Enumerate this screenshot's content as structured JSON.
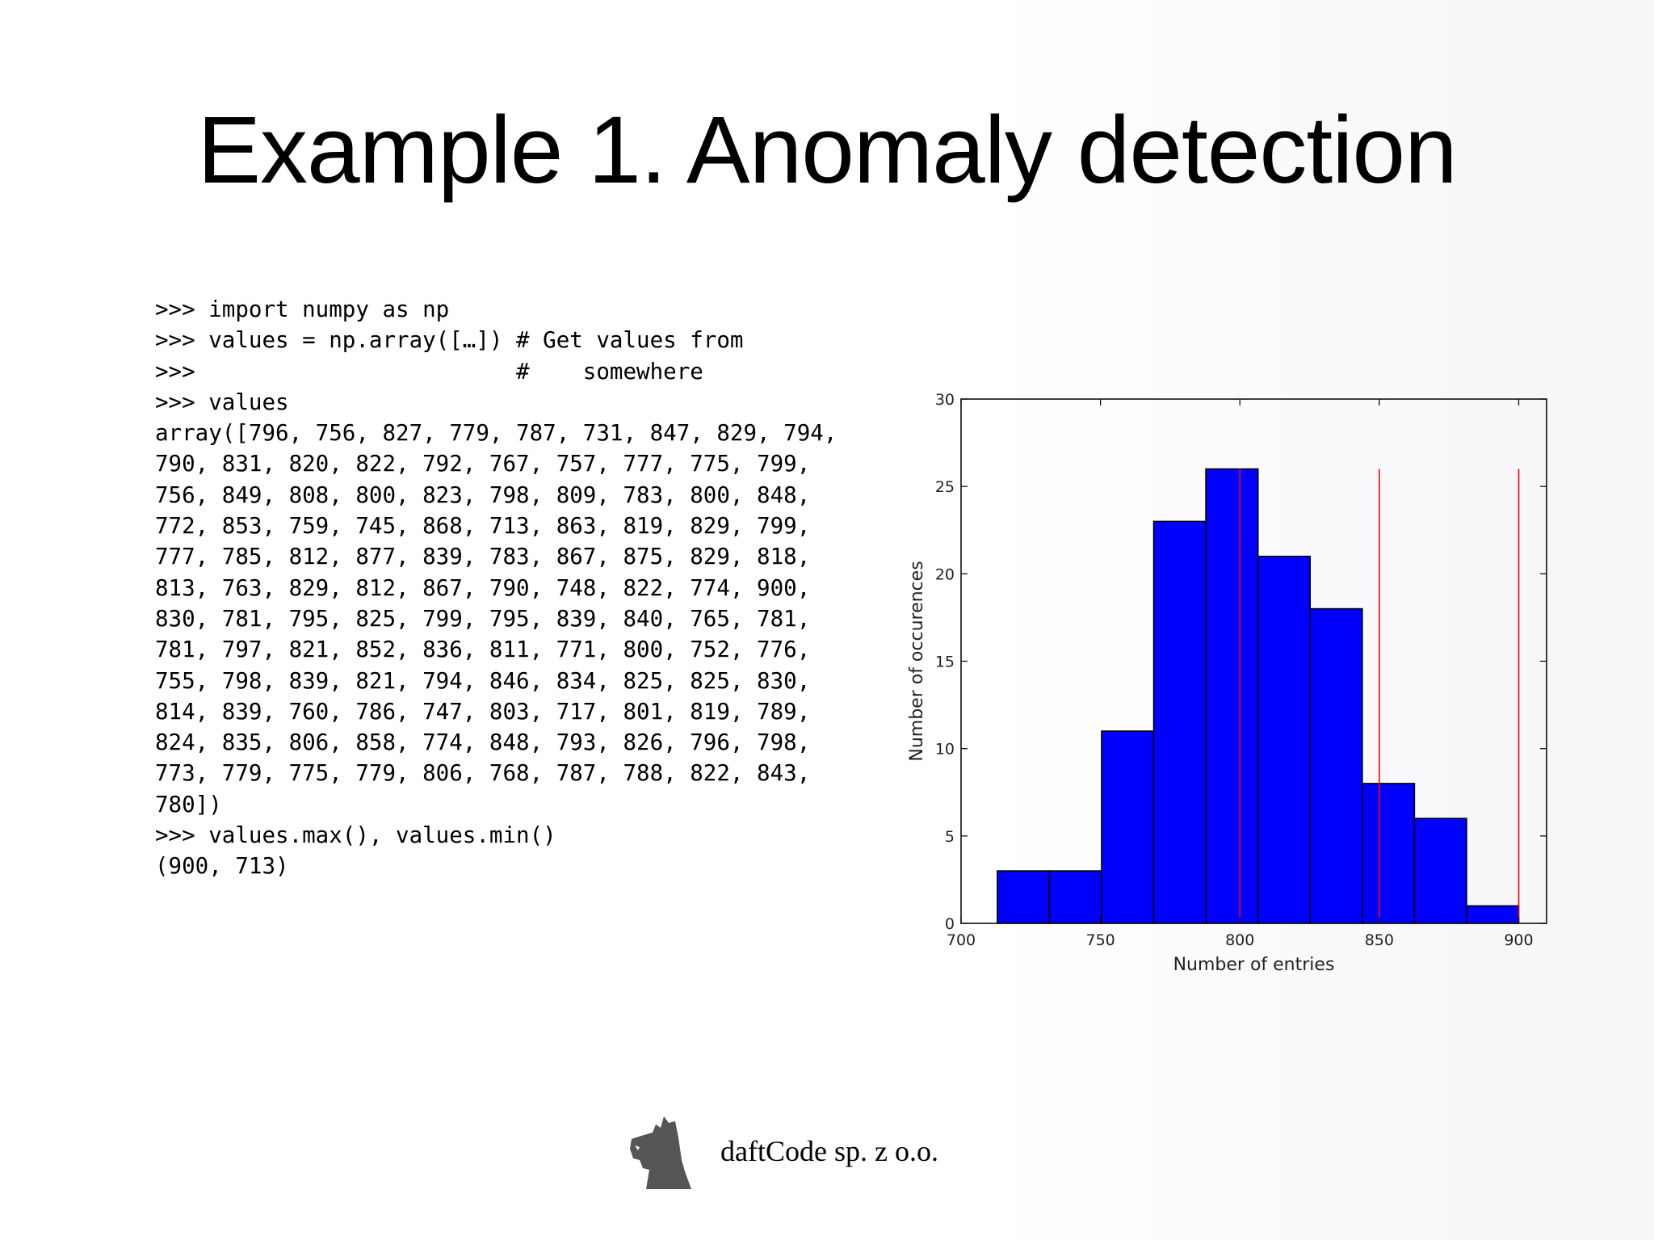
{
  "slide": {
    "title": "Example 1. Anomaly detection"
  },
  "code": {
    "lines": [
      ">>> import numpy as np",
      ">>> values = np.array([…]) # Get values from",
      ">>>                        #    somewhere",
      ">>> values",
      "array([796, 756, 827, 779, 787, 731, 847, 829, 794,",
      "790, 831, 820, 822, 792, 767, 757, 777, 775, 799,",
      "756, 849, 808, 800, 823, 798, 809, 783, 800, 848,",
      "772, 853, 759, 745, 868, 713, 863, 819, 829, 799,",
      "777, 785, 812, 877, 839, 783, 867, 875, 829, 818,",
      "813, 763, 829, 812, 867, 790, 748, 822, 774, 900,",
      "830, 781, 795, 825, 799, 795, 839, 840, 765, 781,",
      "781, 797, 821, 852, 836, 811, 771, 800, 752, 776,",
      "755, 798, 839, 821, 794, 846, 834, 825, 825, 830,",
      "814, 839, 760, 786, 747, 803, 717, 801, 819, 789,",
      "824, 835, 806, 858, 774, 848, 793, 826, 796, 798,",
      "773, 779, 775, 779, 806, 768, 787, 788, 822, 843,",
      "780])",
      ">>> values.max(), values.min()",
      "(900, 713)"
    ]
  },
  "chart_data": {
    "type": "bar",
    "subtype": "histogram",
    "xlabel": "Number of entries",
    "ylabel": "Number of occurences",
    "xlim": [
      700,
      910
    ],
    "ylim": [
      0,
      30
    ],
    "xticks": [
      700,
      750,
      800,
      850,
      900
    ],
    "yticks": [
      0,
      5,
      10,
      15,
      20,
      25,
      30
    ],
    "bins": [
      {
        "start": 713,
        "end": 731.7,
        "count": 3
      },
      {
        "start": 731.7,
        "end": 750.4,
        "count": 3
      },
      {
        "start": 750.4,
        "end": 769.1,
        "count": 11
      },
      {
        "start": 769.1,
        "end": 787.8,
        "count": 23
      },
      {
        "start": 787.8,
        "end": 806.5,
        "count": 26
      },
      {
        "start": 806.5,
        "end": 825.2,
        "count": 21
      },
      {
        "start": 825.2,
        "end": 843.9,
        "count": 18
      },
      {
        "start": 843.9,
        "end": 862.6,
        "count": 8
      },
      {
        "start": 862.6,
        "end": 881.3,
        "count": 6
      },
      {
        "start": 881.3,
        "end": 900,
        "count": 1
      }
    ],
    "vlines": [
      {
        "x": 800,
        "ymax": 26
      },
      {
        "x": 850,
        "ymax": 26
      },
      {
        "x": 900,
        "ymax": 26
      }
    ],
    "bar_color": "#0000ff",
    "line_color": "#ff0000",
    "grid": false
  },
  "footer": {
    "company": "daftCode sp. z o.o.",
    "logo": "daftcode-dog-logo"
  }
}
